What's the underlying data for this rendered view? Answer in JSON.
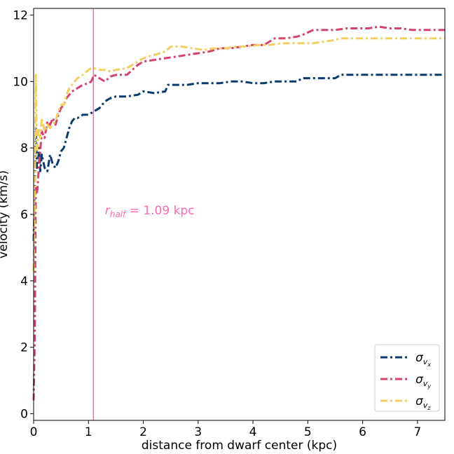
{
  "chart_data": {
    "type": "line",
    "xlabel": "distance from dwarf center (kpc)",
    "ylabel": "velocity (km/s)",
    "xlim": [
      0,
      7.5
    ],
    "ylim": [
      -0.2,
      12.2
    ],
    "xticks": [
      "0",
      "1",
      "2",
      "3",
      "4",
      "5",
      "6",
      "7"
    ],
    "yticks": [
      "0",
      "2",
      "4",
      "6",
      "8",
      "10",
      "12"
    ],
    "grid": false,
    "legend_position": "bottom-right",
    "vline": {
      "x": 1.09,
      "color": "#ff69b4"
    },
    "annotation": {
      "text_r": "r",
      "text_sub": "half",
      "text_rest": " = 1.09 kpc",
      "x": 1.3,
      "y": 6.0,
      "color": "#ff69b4"
    },
    "series": [
      {
        "name": "σ_vx",
        "legend_main": "σ",
        "legend_sub": "v",
        "legend_subsub": "x",
        "color": "#0b3a6f",
        "x": [
          0.0,
          0.02,
          0.04,
          0.06,
          0.08,
          0.1,
          0.12,
          0.15,
          0.2,
          0.25,
          0.3,
          0.35,
          0.4,
          0.45,
          0.5,
          0.55,
          0.6,
          0.65,
          0.7,
          0.75,
          0.8,
          0.9,
          1.0,
          1.1,
          1.2,
          1.3,
          1.4,
          1.5,
          1.7,
          1.9,
          2.0,
          2.2,
          2.4,
          2.45,
          2.6,
          2.8,
          3.0,
          3.2,
          3.4,
          3.6,
          3.8,
          4.0,
          4.2,
          4.4,
          4.6,
          4.8,
          4.9,
          5.1,
          5.3,
          5.5,
          5.6,
          5.8,
          6.0,
          6.2,
          6.4,
          6.6,
          6.8,
          7.0,
          7.2,
          7.5
        ],
        "y": [
          5.2,
          6.5,
          8.6,
          7.4,
          7.6,
          8.0,
          7.3,
          7.8,
          7.4,
          7.3,
          7.8,
          7.5,
          7.4,
          7.6,
          7.9,
          8.0,
          8.3,
          8.6,
          8.8,
          8.9,
          8.9,
          9.0,
          9.0,
          9.1,
          9.2,
          9.4,
          9.5,
          9.55,
          9.55,
          9.6,
          9.7,
          9.65,
          9.7,
          9.9,
          9.9,
          9.9,
          9.95,
          9.95,
          9.95,
          10.0,
          10.0,
          9.95,
          9.95,
          10.0,
          10.0,
          10.0,
          10.1,
          10.1,
          10.1,
          10.1,
          10.2,
          10.2,
          10.2,
          10.2,
          10.2,
          10.2,
          10.2,
          10.2,
          10.2,
          10.2
        ]
      },
      {
        "name": "σ_vy",
        "legend_main": "σ",
        "legend_sub": "v",
        "legend_subsub": "y",
        "color": "#d4436a",
        "x": [
          0.0,
          0.02,
          0.04,
          0.06,
          0.08,
          0.1,
          0.12,
          0.15,
          0.2,
          0.25,
          0.3,
          0.35,
          0.4,
          0.45,
          0.5,
          0.55,
          0.6,
          0.65,
          0.7,
          0.8,
          0.9,
          1.0,
          1.05,
          1.1,
          1.2,
          1.3,
          1.4,
          1.5,
          1.7,
          1.9,
          2.0,
          2.2,
          2.4,
          2.6,
          2.8,
          3.0,
          3.2,
          3.4,
          3.6,
          3.8,
          4.0,
          4.2,
          4.4,
          4.6,
          4.8,
          4.9,
          5.1,
          5.3,
          5.5,
          5.7,
          5.9,
          6.1,
          6.3,
          6.5,
          6.7,
          6.9,
          7.1,
          7.3,
          7.5
        ],
        "y": [
          0.4,
          2.2,
          6.8,
          6.6,
          7.0,
          7.6,
          7.9,
          8.5,
          8.3,
          8.8,
          8.7,
          8.9,
          8.7,
          9.0,
          9.2,
          9.3,
          9.5,
          9.6,
          9.7,
          9.8,
          9.9,
          9.95,
          10.0,
          10.2,
          10.1,
          10.0,
          10.15,
          10.2,
          10.2,
          10.5,
          10.6,
          10.65,
          10.7,
          10.75,
          10.8,
          10.85,
          10.9,
          11.0,
          11.0,
          11.05,
          11.1,
          11.1,
          11.3,
          11.3,
          11.35,
          11.4,
          11.55,
          11.55,
          11.55,
          11.6,
          11.6,
          11.6,
          11.65,
          11.6,
          11.6,
          11.55,
          11.55,
          11.55,
          11.55
        ]
      },
      {
        "name": "σ_vz",
        "legend_main": "σ",
        "legend_sub": "v",
        "legend_subsub": "z",
        "color": "#f2cf60",
        "x": [
          0.0,
          0.02,
          0.04,
          0.06,
          0.08,
          0.1,
          0.12,
          0.15,
          0.2,
          0.25,
          0.3,
          0.35,
          0.4,
          0.45,
          0.5,
          0.55,
          0.6,
          0.65,
          0.7,
          0.8,
          0.9,
          1.0,
          1.05,
          1.1,
          1.2,
          1.3,
          1.4,
          1.5,
          1.7,
          1.9,
          2.0,
          2.2,
          2.4,
          2.5,
          2.7,
          2.9,
          3.1,
          3.3,
          3.5,
          3.7,
          3.9,
          4.1,
          4.3,
          4.5,
          4.7,
          4.9,
          5.1,
          5.3,
          5.5,
          5.6,
          5.8,
          6.0,
          6.2,
          6.4,
          6.6,
          6.8,
          7.0,
          7.2,
          7.5
        ],
        "y": [
          4.3,
          6.3,
          10.2,
          7.8,
          8.3,
          8.6,
          8.3,
          8.9,
          8.5,
          8.7,
          8.6,
          8.7,
          8.8,
          9.1,
          9.3,
          9.3,
          9.6,
          9.8,
          9.9,
          10.1,
          10.2,
          10.35,
          10.4,
          10.4,
          10.35,
          10.35,
          10.3,
          10.35,
          10.4,
          10.6,
          10.7,
          10.8,
          10.9,
          11.05,
          11.05,
          11.0,
          10.95,
          11.0,
          11.0,
          11.05,
          11.05,
          11.1,
          11.1,
          11.15,
          11.15,
          11.15,
          11.15,
          11.2,
          11.25,
          11.3,
          11.3,
          11.3,
          11.3,
          11.3,
          11.3,
          11.3,
          11.3,
          11.3,
          11.3
        ]
      }
    ]
  }
}
